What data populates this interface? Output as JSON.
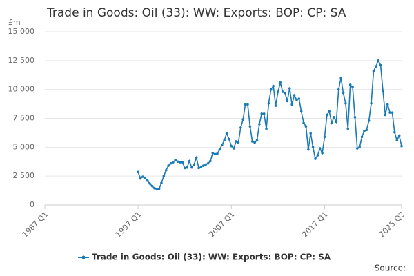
{
  "chart_data": {
    "type": "line",
    "title": "Trade in Goods: Oil (33): WW: Exports: BOP: CP: SA",
    "y_unit": "£m",
    "source": "Source:",
    "categories": [
      "1987 Q1",
      null,
      null,
      null,
      null,
      null,
      null,
      null,
      null,
      null,
      null,
      null,
      null,
      null,
      null,
      null,
      null,
      null,
      null,
      null,
      null,
      null,
      null,
      null,
      null,
      null,
      null,
      null,
      null,
      null,
      null,
      null,
      null,
      null,
      null,
      null,
      null,
      null,
      null,
      null,
      "1997 Q1",
      null,
      null,
      null,
      null,
      null,
      null,
      null,
      null,
      null,
      null,
      null,
      null,
      null,
      null,
      null,
      null,
      null,
      null,
      null,
      null,
      null,
      null,
      null,
      null,
      null,
      null,
      null,
      null,
      null,
      null,
      null,
      null,
      null,
      null,
      null,
      null,
      null,
      null,
      null,
      "2007 Q1",
      null,
      null,
      null,
      null,
      null,
      null,
      null,
      null,
      null,
      null,
      null,
      null,
      null,
      null,
      null,
      null,
      null,
      null,
      null,
      null,
      null,
      null,
      null,
      null,
      null,
      null,
      null,
      null,
      null,
      null,
      null,
      null,
      null,
      null,
      null,
      null,
      null,
      null,
      null,
      "2017 Q1",
      null,
      null,
      null,
      null,
      null,
      null,
      null,
      null,
      null,
      null,
      null,
      null,
      null,
      null,
      null,
      null,
      null,
      null,
      null,
      null,
      null,
      null,
      null,
      null,
      null,
      null,
      null,
      null,
      null,
      null,
      null,
      null,
      "2025 Q2"
    ],
    "series": [
      {
        "name": "Trade in Goods: Oil (33): WW: Exports: BOP: CP: SA",
        "color": "#1a7ab5",
        "values": [
          null,
          null,
          null,
          null,
          null,
          null,
          null,
          null,
          null,
          null,
          null,
          null,
          null,
          null,
          null,
          null,
          null,
          null,
          null,
          null,
          null,
          null,
          null,
          null,
          null,
          null,
          null,
          null,
          null,
          null,
          null,
          null,
          null,
          null,
          null,
          null,
          null,
          null,
          null,
          null,
          2850,
          2300,
          2450,
          2350,
          2100,
          1850,
          1650,
          1450,
          1350,
          1400,
          1900,
          2500,
          3000,
          3400,
          3600,
          3700,
          3900,
          3750,
          3700,
          3700,
          3200,
          3250,
          3800,
          3250,
          3500,
          4100,
          3200,
          3300,
          3400,
          3500,
          3600,
          3800,
          4500,
          4400,
          4450,
          4800,
          5200,
          5600,
          6200,
          5700,
          5100,
          4900,
          5500,
          5400,
          6700,
          7400,
          8700,
          8700,
          6800,
          5500,
          5400,
          5600,
          7000,
          7900,
          7900,
          6600,
          8800,
          10000,
          10300,
          8600,
          9800,
          10600,
          9800,
          9700,
          9000,
          10100,
          8700,
          9500,
          9100,
          9200,
          8100,
          7100,
          6800,
          4800,
          6200,
          5000,
          4000,
          4300,
          4900,
          4500,
          5900,
          7800,
          8100,
          7100,
          7600,
          7200,
          10000,
          11000,
          9700,
          8800,
          6600,
          10400,
          10200,
          7600,
          4900,
          5000,
          5900,
          6400,
          6500,
          7300,
          8800,
          11600,
          12000,
          12500,
          12100,
          9900,
          7800,
          8700,
          8000,
          8000,
          6300,
          5600,
          6000,
          5100
        ]
      }
    ],
    "ylim": [
      0,
      15000
    ],
    "yticks": [
      0,
      {
        "value": 2500,
        "label": "2 500"
      },
      {
        "value": 5000,
        "label": "5 000"
      },
      {
        "value": 7500,
        "label": "7 500"
      },
      {
        "value": 10000,
        "label": "10 000"
      },
      {
        "value": 12500,
        "label": "12 500"
      },
      {
        "value": 15000,
        "label": "15 000"
      }
    ],
    "grid": true
  }
}
